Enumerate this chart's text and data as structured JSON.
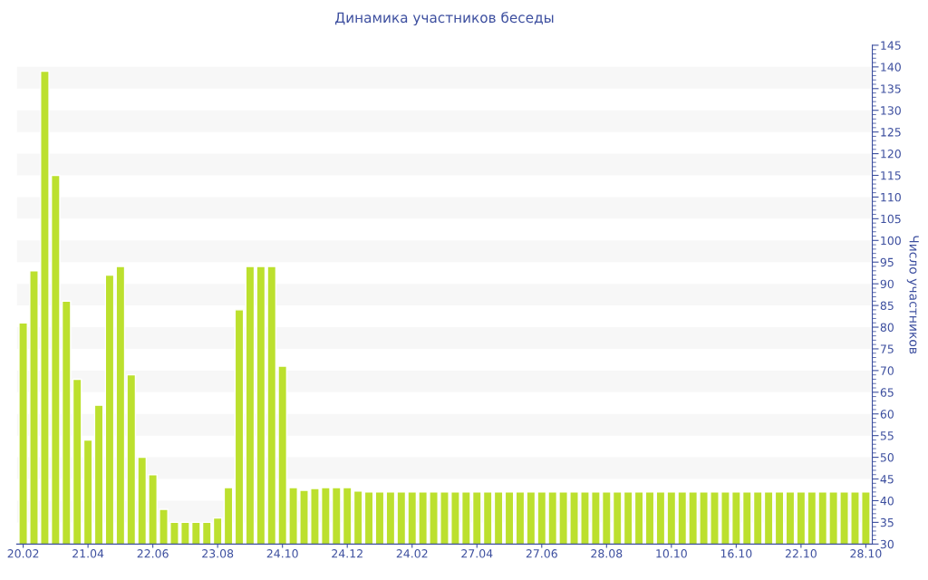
{
  "chart_data": {
    "type": "bar",
    "title": "Динамика участников беседы",
    "ylabel": "Число участников",
    "categories": [
      "20.02",
      null,
      null,
      null,
      null,
      null,
      "21.04",
      null,
      null,
      null,
      null,
      null,
      "22.06",
      null,
      null,
      null,
      null,
      null,
      "23.08",
      null,
      null,
      null,
      null,
      null,
      "24.10",
      null,
      null,
      null,
      null,
      null,
      "24.12",
      null,
      null,
      null,
      null,
      null,
      "24.02",
      null,
      null,
      null,
      null,
      null,
      "27.04",
      null,
      null,
      null,
      null,
      null,
      "27.06",
      null,
      null,
      null,
      null,
      null,
      "28.08",
      null,
      null,
      null,
      null,
      null,
      "10.10",
      null,
      null,
      null,
      null,
      null,
      "16.10",
      null,
      null,
      null,
      null,
      null,
      "22.10",
      null,
      null,
      null,
      null,
      null,
      "28.10"
    ],
    "values": [
      81,
      93,
      139,
      115,
      86,
      68,
      54,
      62,
      92,
      94,
      69,
      50,
      46,
      38,
      35,
      35,
      35,
      35,
      36,
      43,
      84,
      94,
      94,
      94,
      71,
      43,
      42.4,
      42.8,
      43,
      43,
      43,
      42.2,
      42,
      42,
      42,
      42,
      42,
      42,
      42,
      42,
      42,
      42,
      42,
      42,
      42,
      42,
      42,
      42,
      42,
      42,
      42,
      42,
      42,
      42,
      42,
      42,
      42,
      42,
      42,
      42,
      42,
      42,
      42,
      42,
      42,
      42,
      42,
      42,
      42,
      42,
      42,
      42,
      42,
      42,
      42,
      42,
      42,
      42,
      42
    ],
    "color": "#bce02e",
    "ylim": [
      30,
      145
    ],
    "yticks": [
      30,
      35,
      40,
      45,
      50,
      55,
      60,
      65,
      70,
      75,
      80,
      85,
      90,
      95,
      100,
      105,
      110,
      115,
      120,
      125,
      130,
      135,
      140,
      145
    ],
    "bands": [
      {
        "axis": "y",
        "from": 35,
        "to": 40,
        "color": "#f7f7f7"
      },
      {
        "axis": "y",
        "from": 45,
        "to": 50,
        "color": "#f7f7f7"
      },
      {
        "axis": "y",
        "from": 55,
        "to": 60,
        "color": "#f7f7f7"
      },
      {
        "axis": "y",
        "from": 65,
        "to": 70,
        "color": "#f7f7f7"
      },
      {
        "axis": "y",
        "from": 75,
        "to": 80,
        "color": "#f7f7f7"
      },
      {
        "axis": "y",
        "from": 85,
        "to": 90,
        "color": "#f7f7f7"
      },
      {
        "axis": "y",
        "from": 95,
        "to": 100,
        "color": "#f7f7f7"
      },
      {
        "axis": "y",
        "from": 105,
        "to": 110,
        "color": "#f7f7f7"
      },
      {
        "axis": "y",
        "from": 115,
        "to": 120,
        "color": "#f7f7f7"
      },
      {
        "axis": "y",
        "from": 125,
        "to": 130,
        "color": "#f7f7f7"
      },
      {
        "axis": "y",
        "from": 135,
        "to": 140,
        "color": "#f7f7f7"
      }
    ]
  }
}
